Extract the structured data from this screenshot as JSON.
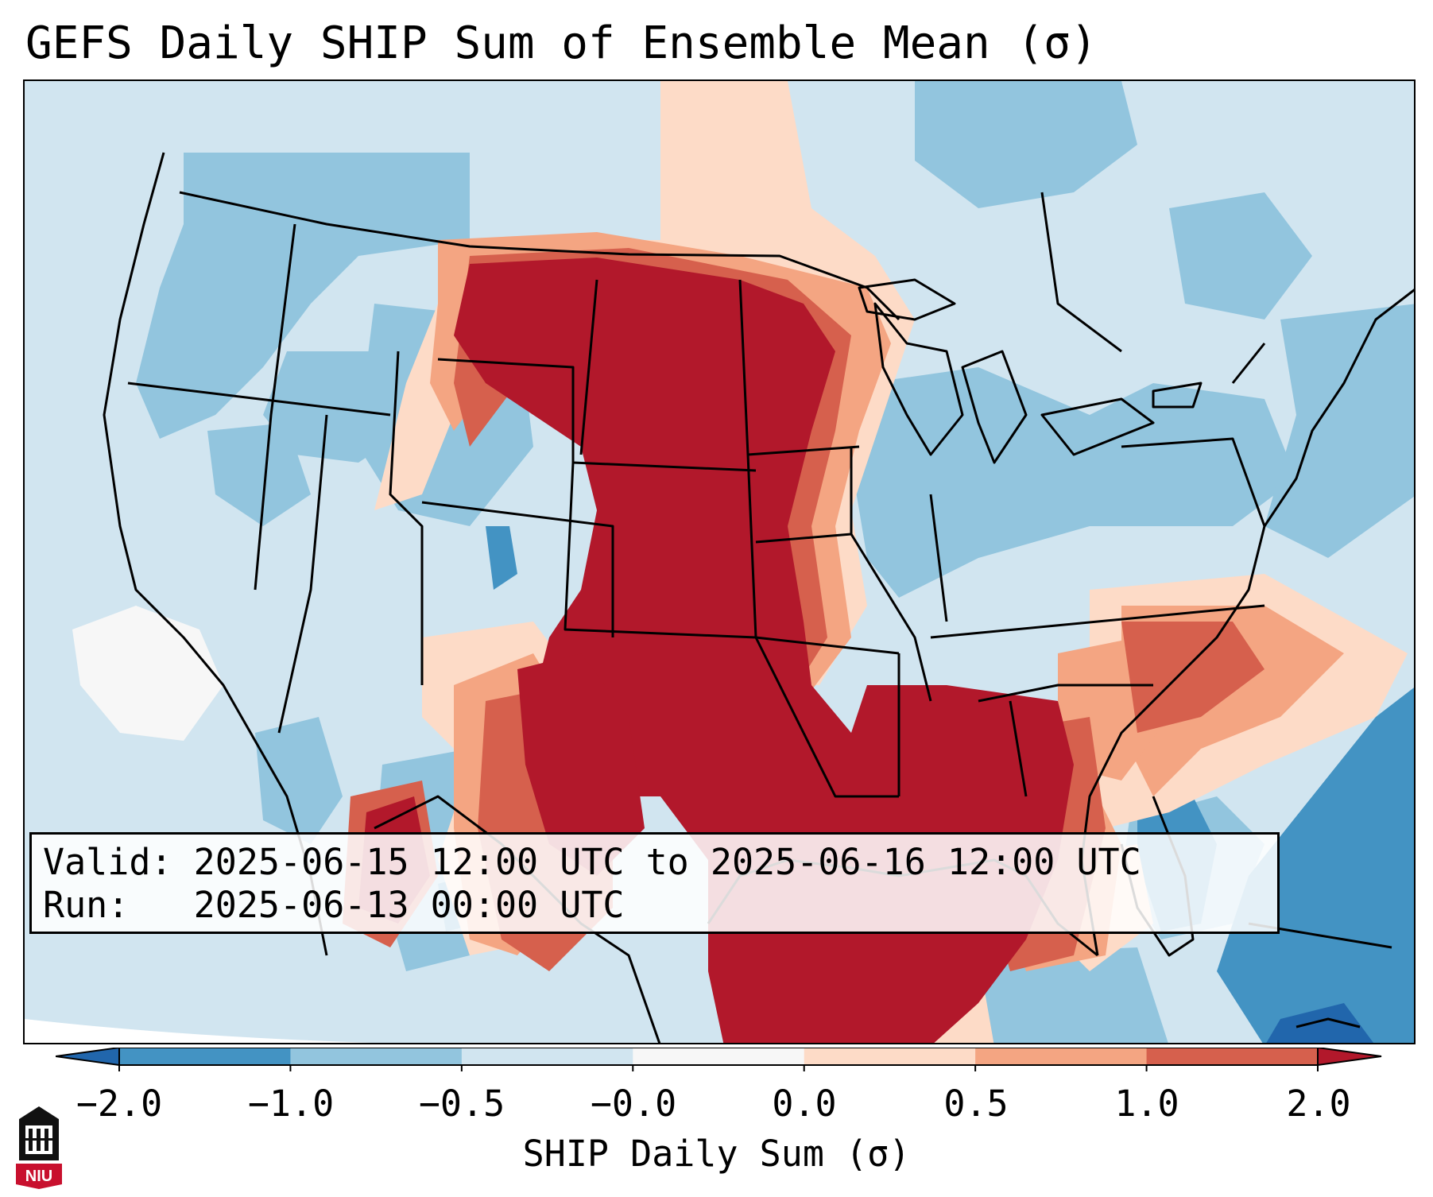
{
  "title": "GEFS Daily SHIP Sum of Ensemble Mean (σ)",
  "info": {
    "valid_label": "Valid:",
    "valid_value": "2025-06-15 12:00 UTC to 2025-06-16 12:00 UTC",
    "run_label": "Run:",
    "run_value": "2025-06-13 00:00 UTC"
  },
  "colorbar": {
    "label": "SHIP Daily Sum (σ)",
    "ticks": [
      "−2.0",
      "−1.0",
      "−0.5",
      "−0.0",
      "0.0",
      "0.5",
      "1.0",
      "2.0"
    ],
    "colors": {
      "under": "#2166ac",
      "bins": [
        "#4393c3",
        "#92c5de",
        "#d1e5f0",
        "#f7f7f7",
        "#fddbc7",
        "#f4a582",
        "#d6604d"
      ],
      "over": "#b2182b"
    }
  },
  "logo": {
    "text": "NIU",
    "colors": {
      "red": "#c8102e",
      "black": "#000000"
    }
  }
}
